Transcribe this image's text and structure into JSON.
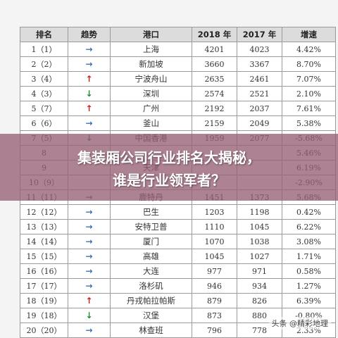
{
  "table": {
    "headers": [
      "排名",
      "趋势",
      "港口",
      "2018 年",
      "2017 年",
      "增速"
    ],
    "rows": [
      {
        "rank": "1（1）",
        "trend": "right",
        "port": "上海",
        "y2018": "4201",
        "y2017": "4023",
        "growth": "4.42%"
      },
      {
        "rank": "2（2）",
        "trend": "right",
        "port": "新加坡",
        "y2018": "3660",
        "y2017": "3367",
        "growth": "8.70%"
      },
      {
        "rank": "3（4）",
        "trend": "up",
        "port": "宁波舟山",
        "y2018": "2635",
        "y2017": "2461",
        "growth": "7.07%"
      },
      {
        "rank": "4（3）",
        "trend": "down",
        "port": "深圳",
        "y2018": "2574",
        "y2017": "2521",
        "growth": "2.10%"
      },
      {
        "rank": "5（7）",
        "trend": "up",
        "port": "广州",
        "y2018": "2192",
        "y2017": "2037",
        "growth": "7.61%"
      },
      {
        "rank": "6（6）",
        "trend": "right",
        "port": "釜山",
        "y2018": "2159",
        "y2017": "2049",
        "growth": "5.38%"
      },
      {
        "rank": "7（5）",
        "trend": "down",
        "port": "中国香港",
        "y2018": "1959",
        "y2017": "2077",
        "growth": "-5.68%"
      },
      {
        "rank": "8",
        "trend": "",
        "port": "",
        "y2018": "",
        "y2017": "",
        "growth": "5.46%"
      },
      {
        "rank": "9",
        "trend": "",
        "port": "天津",
        "y2018": "",
        "y2017": "",
        "growth": "6.19%"
      },
      {
        "rank": "10（9）",
        "trend": "",
        "port": "",
        "y2018": "",
        "y2017": "",
        "growth": "-2.90%"
      },
      {
        "rank": "11（11）",
        "trend": "right",
        "port": "鹿特丹",
        "y2018": "1451",
        "y2017": "1373",
        "growth": "5.68%"
      },
      {
        "rank": "12（12）",
        "trend": "right",
        "port": "巴生",
        "y2018": "1203",
        "y2017": "1198",
        "growth": "0.42%"
      },
      {
        "rank": "13（13）",
        "trend": "right",
        "port": "安特卫普",
        "y2018": "1110",
        "y2017": "1045",
        "growth": "6.22%"
      },
      {
        "rank": "14（14）",
        "trend": "right",
        "port": "厦门",
        "y2018": "1070",
        "y2017": "1038",
        "growth": "3.08%"
      },
      {
        "rank": "15（15）",
        "trend": "right",
        "port": "高雄",
        "y2018": "1045",
        "y2017": "1027",
        "growth": "1.71%"
      },
      {
        "rank": "16（16）",
        "trend": "right",
        "port": "大连",
        "y2018": "977",
        "y2017": "971",
        "growth": "0.58%"
      },
      {
        "rank": "17（17）",
        "trend": "right",
        "port": "洛杉矶",
        "y2018": "946",
        "y2017": "934",
        "growth": "1.27%"
      },
      {
        "rank": "18（19）",
        "trend": "up",
        "port": "丹戎帕拉帕斯",
        "y2018": "879",
        "y2017": "826",
        "growth": "6.39%"
      },
      {
        "rank": "19（18）",
        "trend": "down",
        "port": "汉堡",
        "y2018": "873",
        "y2017": "880",
        "growth": "-0.80%"
      },
      {
        "rank": "20（20）",
        "trend": "right",
        "port": "林查班",
        "y2018": "796",
        "y2017": "778",
        "growth": "2.33%"
      }
    ]
  },
  "trend_glyphs": {
    "right": "→",
    "up": "↑",
    "down": "↓"
  },
  "trend_colors": {
    "right": "#3a6fb5",
    "up": "#c8231b",
    "down": "#1e8a3a"
  },
  "overlay": {
    "line1": "集装厢公司行业排名大揭秘，",
    "line2": "谁是行业领军者？"
  },
  "watermark": "头条 @精彩地理"
}
